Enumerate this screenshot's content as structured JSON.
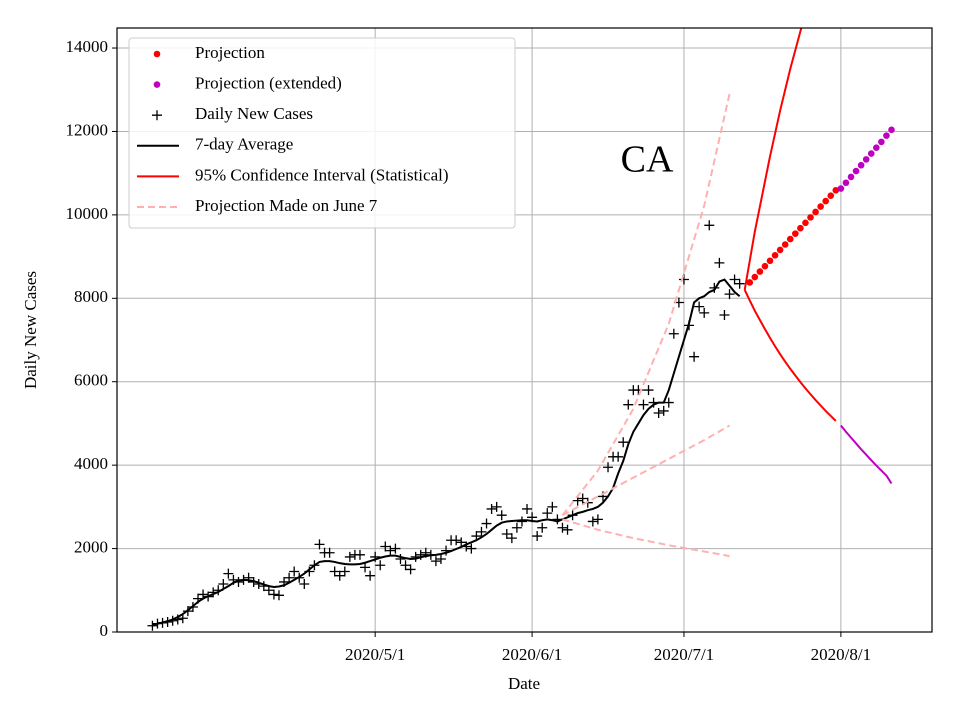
{
  "chart_data": {
    "type": "line",
    "annotation": "CA",
    "xlabel": "Date",
    "ylabel": "Daily New Cases",
    "xlim": [
      "2020/3/11",
      "2020/8/19"
    ],
    "xticks": [
      "2020/5/1",
      "2020/6/1",
      "2020/7/1",
      "2020/8/1"
    ],
    "ylim": [
      0,
      14480
    ],
    "yticks": [
      0,
      2000,
      4000,
      6000,
      8000,
      10000,
      12000,
      14000
    ],
    "grid": true,
    "legend": "upper left",
    "x": [
      "2020/3/18",
      "2020/3/19",
      "2020/3/20",
      "2020/3/21",
      "2020/3/22",
      "2020/3/23",
      "2020/3/24",
      "2020/3/25",
      "2020/3/26",
      "2020/3/27",
      "2020/3/28",
      "2020/3/29",
      "2020/3/30",
      "2020/3/31",
      "2020/4/1",
      "2020/4/2",
      "2020/4/3",
      "2020/4/4",
      "2020/4/5",
      "2020/4/6",
      "2020/4/7",
      "2020/4/8",
      "2020/4/9",
      "2020/4/10",
      "2020/4/11",
      "2020/4/12",
      "2020/4/13",
      "2020/4/14",
      "2020/4/15",
      "2020/4/16",
      "2020/4/17",
      "2020/4/18",
      "2020/4/19",
      "2020/4/20",
      "2020/4/21",
      "2020/4/22",
      "2020/4/23",
      "2020/4/24",
      "2020/4/25",
      "2020/4/26",
      "2020/4/27",
      "2020/4/28",
      "2020/4/29",
      "2020/4/30",
      "2020/5/1",
      "2020/5/2",
      "2020/5/3",
      "2020/5/4",
      "2020/5/5",
      "2020/5/6",
      "2020/5/7",
      "2020/5/8",
      "2020/5/9",
      "2020/5/10",
      "2020/5/11",
      "2020/5/12",
      "2020/5/13",
      "2020/5/14",
      "2020/5/15",
      "2020/5/16",
      "2020/5/17",
      "2020/5/18",
      "2020/5/19",
      "2020/5/20",
      "2020/5/21",
      "2020/5/22",
      "2020/5/23",
      "2020/5/24",
      "2020/5/25",
      "2020/5/26",
      "2020/5/27",
      "2020/5/28",
      "2020/5/29",
      "2020/5/30",
      "2020/5/31",
      "2020/6/1",
      "2020/6/2",
      "2020/6/3",
      "2020/6/4",
      "2020/6/5",
      "2020/6/6",
      "2020/6/7",
      "2020/6/8",
      "2020/6/9",
      "2020/6/10",
      "2020/6/11",
      "2020/6/12",
      "2020/6/13",
      "2020/6/14",
      "2020/6/15",
      "2020/6/16",
      "2020/6/17",
      "2020/6/18",
      "2020/6/19",
      "2020/6/20",
      "2020/6/21",
      "2020/6/22",
      "2020/6/23",
      "2020/6/24",
      "2020/6/25",
      "2020/6/26",
      "2020/6/27",
      "2020/6/28",
      "2020/6/29",
      "2020/6/30",
      "2020/7/1",
      "2020/7/2",
      "2020/7/3",
      "2020/7/4",
      "2020/7/5",
      "2020/7/6",
      "2020/7/7",
      "2020/7/8",
      "2020/7/9",
      "2020/7/10",
      "2020/7/11",
      "2020/7/12"
    ],
    "series": [
      {
        "name": "Projection",
        "color": "#ff0000",
        "style": "dot",
        "x": [
          "2020/7/14",
          "2020/7/15",
          "2020/7/16",
          "2020/7/17",
          "2020/7/18",
          "2020/7/19",
          "2020/7/20",
          "2020/7/21",
          "2020/7/22",
          "2020/7/23",
          "2020/7/24",
          "2020/7/25",
          "2020/7/26",
          "2020/7/27",
          "2020/7/28",
          "2020/7/29",
          "2020/7/30",
          "2020/7/31"
        ],
        "values": [
          8380,
          8510,
          8640,
          8770,
          8900,
          9030,
          9160,
          9290,
          9420,
          9550,
          9680,
          9810,
          9940,
          10070,
          10200,
          10330,
          10460,
          10590
        ]
      },
      {
        "name": "Projection (extended)",
        "color": "#c000c0",
        "style": "dot",
        "x": [
          "2020/8/1",
          "2020/8/2",
          "2020/8/3",
          "2020/8/4",
          "2020/8/5",
          "2020/8/6",
          "2020/8/7",
          "2020/8/8",
          "2020/8/9",
          "2020/8/10",
          "2020/8/11"
        ],
        "values": [
          10630,
          10770,
          10910,
          11050,
          11190,
          11330,
          11470,
          11610,
          11750,
          11900,
          12040
        ]
      },
      {
        "name": "Daily New Cases",
        "color": "#000000",
        "style": "plus",
        "values": [
          150,
          200,
          220,
          240,
          270,
          300,
          330,
          500,
          600,
          800,
          900,
          850,
          950,
          1000,
          1150,
          1400,
          1250,
          1200,
          1250,
          1300,
          1200,
          1150,
          1100,
          1000,
          900,
          880,
          1200,
          1300,
          1450,
          1300,
          1150,
          1450,
          1600,
          2100,
          1900,
          1900,
          1450,
          1350,
          1450,
          1800,
          1850,
          1850,
          1550,
          1350,
          1800,
          1600,
          2050,
          1950,
          2000,
          1750,
          1600,
          1500,
          1800,
          1850,
          1900,
          1850,
          1700,
          1750,
          1950,
          2200,
          2200,
          2150,
          2050,
          2000,
          2300,
          2400,
          2600,
          2950,
          3000,
          2800,
          2350,
          2250,
          2500,
          2650,
          2950,
          2750,
          2300,
          2500,
          2850,
          3000,
          2700,
          2500,
          2450,
          2800,
          3150,
          3200,
          3100,
          2650,
          2700,
          3250,
          3950,
          4200,
          4200,
          4550,
          5450,
          5800,
          5800,
          5450,
          5800,
          5500,
          5250,
          5300,
          5500,
          7150,
          7900,
          8450,
          7350,
          6600,
          7800,
          7650,
          9750,
          8250,
          8850,
          7600,
          8100,
          8450,
          8350
        ]
      },
      {
        "name": "7-day Average",
        "color": "#000000",
        "style": "line",
        "values": [
          170,
          200,
          230,
          260,
          300,
          360,
          430,
          520,
          620,
          720,
          800,
          860,
          910,
          960,
          1030,
          1100,
          1180,
          1230,
          1250,
          1240,
          1220,
          1180,
          1140,
          1100,
          1080,
          1090,
          1120,
          1180,
          1250,
          1320,
          1400,
          1500,
          1600,
          1680,
          1700,
          1700,
          1680,
          1650,
          1630,
          1620,
          1620,
          1630,
          1660,
          1700,
          1740,
          1780,
          1810,
          1830,
          1830,
          1800,
          1770,
          1750,
          1760,
          1790,
          1820,
          1840,
          1850,
          1870,
          1900,
          1940,
          1990,
          2040,
          2100,
          2150,
          2200,
          2270,
          2350,
          2450,
          2550,
          2620,
          2650,
          2660,
          2670,
          2680,
          2680,
          2660,
          2650,
          2680,
          2700,
          2680,
          2650,
          2700,
          2750,
          2800,
          2850,
          2880,
          2920,
          2950,
          3000,
          3100,
          3250,
          3450,
          3800,
          4100,
          4500,
          4800,
          5000,
          5200,
          5350,
          5450,
          5500,
          5500,
          5800,
          6200,
          6600,
          7000,
          7400,
          7900,
          8000,
          8050,
          8150,
          8200,
          8400,
          8450,
          8300,
          8150,
          8050
        ]
      },
      {
        "name": "95% Confidence Interval (Statistical)",
        "color": "#ff0000",
        "style": "line",
        "x": [
          "2020/7/13",
          "2020/7/14",
          "2020/7/15",
          "2020/7/16",
          "2020/7/17",
          "2020/7/18",
          "2020/7/19",
          "2020/7/20",
          "2020/7/21",
          "2020/7/22",
          "2020/7/23",
          "2020/7/24",
          "2020/7/25"
        ],
        "values": [
          8200,
          8900,
          9600,
          10200,
          10800,
          11400,
          11950,
          12500,
          13000,
          13500,
          13950,
          14400,
          14850
        ]
      },
      {
        "color": "#ff0000",
        "style": "line",
        "x": [
          "2020/7/13",
          "2020/7/14",
          "2020/7/15",
          "2020/7/16",
          "2020/7/17",
          "2020/7/18",
          "2020/7/19",
          "2020/7/20",
          "2020/7/21",
          "2020/7/22",
          "2020/7/23",
          "2020/7/24",
          "2020/7/25",
          "2020/7/26",
          "2020/7/27",
          "2020/7/28",
          "2020/7/29",
          "2020/7/30",
          "2020/7/31"
        ],
        "values": [
          8200,
          7950,
          7700,
          7480,
          7260,
          7050,
          6850,
          6660,
          6480,
          6310,
          6150,
          5990,
          5840,
          5700,
          5560,
          5430,
          5300,
          5180,
          5060
        ]
      },
      {
        "color": "#c000c0",
        "style": "line",
        "x": [
          "2020/8/1",
          "2020/8/2",
          "2020/8/3",
          "2020/8/4",
          "2020/8/5",
          "2020/8/6",
          "2020/8/7",
          "2020/8/8",
          "2020/8/9",
          "2020/8/10",
          "2020/8/11"
        ],
        "values": [
          4950,
          4800,
          4660,
          4520,
          4380,
          4250,
          4120,
          3990,
          3870,
          3750,
          3560
        ]
      },
      {
        "name": "Projection Made on June 7",
        "color": "#ffb0b0",
        "style": "dashed",
        "x": [
          "2020/6/7",
          "2020/6/14",
          "2020/6/21",
          "2020/6/28",
          "2020/7/5",
          "2020/7/10"
        ],
        "values": [
          2800,
          3870,
          5350,
          7390,
          10220,
          12900
        ]
      },
      {
        "color": "#ffb0b0",
        "style": "dashed",
        "x": [
          "2020/6/7",
          "2020/6/14",
          "2020/6/21",
          "2020/6/28",
          "2020/7/5",
          "2020/7/10"
        ],
        "values": [
          2800,
          3250,
          3700,
          4150,
          4600,
          4950
        ]
      },
      {
        "color": "#ffb0b0",
        "style": "dashed",
        "x": [
          "2020/6/7",
          "2020/6/14",
          "2020/6/21",
          "2020/6/28",
          "2020/7/5",
          "2020/7/10"
        ],
        "values": [
          2700,
          2450,
          2250,
          2080,
          1930,
          1820
        ]
      }
    ]
  }
}
